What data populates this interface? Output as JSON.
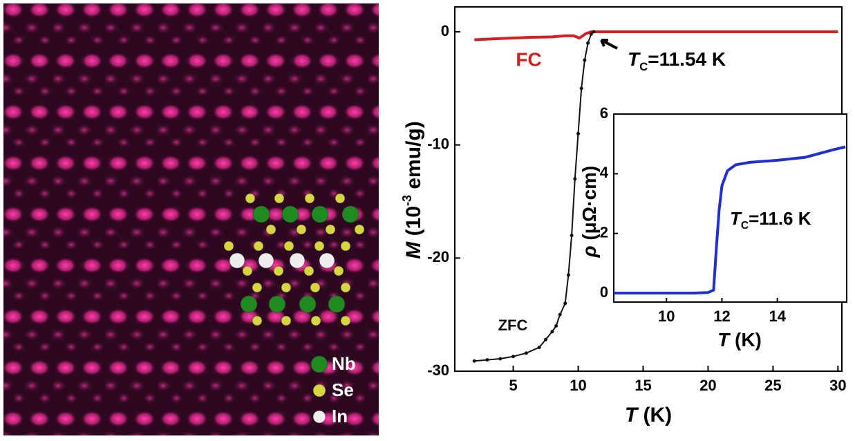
{
  "chart_data": [
    {
      "type": "line",
      "xlabel": [
        {
          "text": "T",
          "style": "italic"
        },
        {
          "text": " (K)"
        }
      ],
      "ylabel": [
        {
          "text": "M",
          "style": "italic"
        },
        {
          "text": " (10"
        },
        {
          "text": "-3",
          "style": "sup"
        },
        {
          "text": " emu/g)"
        }
      ],
      "xlim": [
        0.5,
        30.3
      ],
      "ylim": [
        -30,
        2.2
      ],
      "xticks": [
        5,
        10,
        15,
        20,
        25,
        30
      ],
      "yticks": [
        0,
        -10,
        -20,
        -30
      ],
      "series": [
        {
          "name": "FC",
          "color": "#d42020",
          "markers": false,
          "x": [
            2,
            4,
            6,
            8,
            9,
            9.65,
            10.1,
            10.6,
            11,
            12,
            15,
            20,
            25,
            30
          ],
          "values": [
            -0.7,
            -0.6,
            -0.5,
            -0.45,
            -0.35,
            -0.35,
            -0.55,
            -0.15,
            0,
            0,
            0,
            0,
            0,
            0
          ]
        },
        {
          "name": "ZFC",
          "color": "#111111",
          "markers": true,
          "x": [
            2,
            3,
            4,
            5,
            6,
            7,
            7.5,
            8,
            8.3,
            8.6,
            9,
            9.25,
            9.5,
            9.75,
            10,
            10.25,
            10.5,
            10.75,
            11,
            11.2
          ],
          "values": [
            -29.1,
            -29,
            -28.9,
            -28.7,
            -28.4,
            -27.9,
            -27.2,
            -26.5,
            -26,
            -25,
            -24,
            -21.5,
            -18,
            -13,
            -9,
            -5,
            -2.5,
            -1,
            -0.2,
            0
          ]
        }
      ],
      "annotations": [
        [
          {
            "text": "T",
            "style": "italic"
          },
          {
            "text": "C",
            "style": "sub"
          },
          {
            "text": "=11.54 K"
          }
        ]
      ]
    },
    {
      "type": "line",
      "xlabel": [
        {
          "text": "T",
          "style": "italic"
        },
        {
          "text": " (K)"
        }
      ],
      "ylabel": [
        {
          "text": "ρ",
          "style": "italic"
        },
        {
          "text": " (μΩ·cm)"
        }
      ],
      "xlim": [
        8.1,
        16.5
      ],
      "ylim": [
        -0.3,
        6
      ],
      "xticks": [
        10,
        12,
        14
      ],
      "yticks": [
        0,
        2,
        4,
        6
      ],
      "series": [
        {
          "color": "#2030d0",
          "markers": false,
          "x": [
            8.1,
            9,
            10,
            11,
            11.5,
            11.7,
            11.8,
            11.9,
            12.0,
            12.2,
            12.5,
            13,
            14,
            15,
            16,
            16.45
          ],
          "values": [
            0,
            0,
            0,
            0,
            0.02,
            0.1,
            1.5,
            2.8,
            3.6,
            4.1,
            4.3,
            4.38,
            4.45,
            4.55,
            4.8,
            4.9
          ]
        }
      ],
      "annotations": [
        [
          {
            "text": "T",
            "style": "italic"
          },
          {
            "text": "C",
            "style": "sub"
          },
          {
            "text": "=11.6 K"
          }
        ]
      ]
    }
  ],
  "image": {
    "legend": [
      {
        "label": "Nb",
        "color": "#1f8a1f"
      },
      {
        "label": "Se",
        "color": "#d8d640"
      },
      {
        "label": "In",
        "color": "#eeeeee"
      }
    ]
  }
}
